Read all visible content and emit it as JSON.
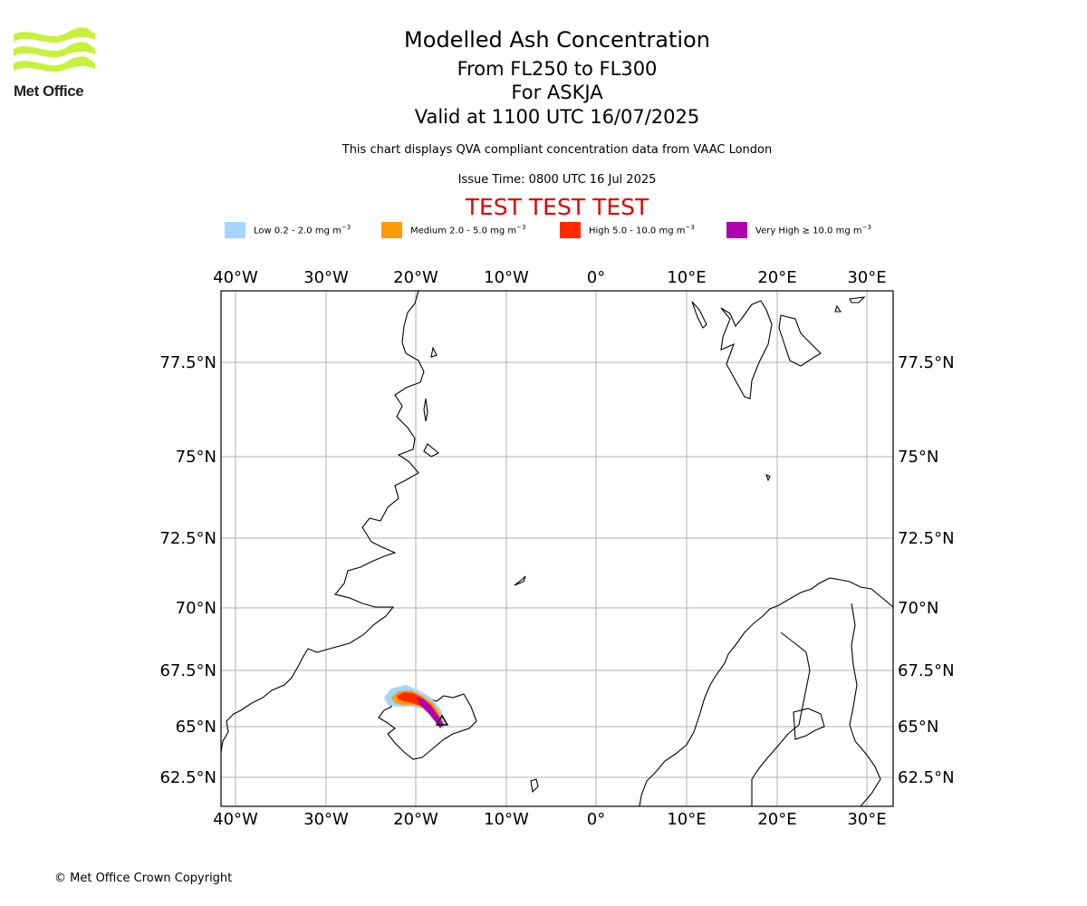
{
  "header": {
    "logo_text": "Met Office",
    "title": "Modelled Ash Concentration",
    "subtitle_level": "From FL250 to FL300",
    "subtitle_volcano": "For ASKJA",
    "subtitle_valid": "Valid at 1100 UTC 16/07/2025",
    "description": "This chart displays QVA compliant concentration data from VAAC London",
    "issue_time": "Issue Time: 0800 UTC 16 Jul 2025",
    "test_banner": "TEST TEST TEST"
  },
  "legend": [
    {
      "text": "Low 0.2 - 2.0 mg m",
      "exp": "−3",
      "color": "#a3d5ff"
    },
    {
      "text": "Medium 2.0 - 5.0 mg m",
      "exp": "−3",
      "color": "#ff9a0a"
    },
    {
      "text": "High 5.0 - 10.0 mg m",
      "exp": "−3",
      "color": "#ff2a00"
    },
    {
      "text": "Very High  ≥  10.0 mg m",
      "exp": "−3",
      "color": "#b000b0"
    }
  ],
  "map": {
    "lon_ticks": [
      "40°W",
      "30°W",
      "20°W",
      "10°W",
      "0°",
      "10°E",
      "20°E",
      "30°E"
    ],
    "lat_ticks": [
      "77.5°N",
      "75°N",
      "72.5°N",
      "70°N",
      "67.5°N",
      "65°N",
      "62.5°N"
    ],
    "grid": true,
    "coastline_color": "#000000",
    "grid_color": "#b0b0b0"
  },
  "footer": {
    "copyright": "© Met Office Crown Copyright"
  }
}
